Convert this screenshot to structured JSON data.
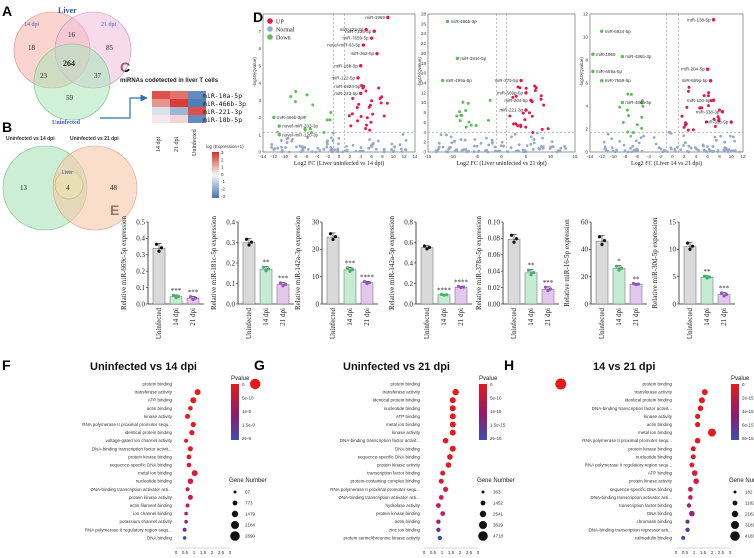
{
  "panel_labels": [
    "A",
    "B",
    "C",
    "D",
    "E",
    "F",
    "G",
    "H"
  ],
  "venn_a": {
    "sets": [
      "Liver",
      "14 dpi",
      "21 dpi",
      "Uninfected"
    ],
    "regions": [
      "18",
      "16",
      "85",
      "264",
      "23",
      "37",
      "59"
    ]
  },
  "venn_b": {
    "sets": [
      "Uninfected vs 14 dpi",
      "Uninfected vs 21 dpi",
      "Liver"
    ],
    "regions": [
      "13",
      "4",
      "48"
    ]
  },
  "heatmap": {
    "title": "miRNAs codetected in liver T cells",
    "rows": [
      "miR-10a-5p",
      "miR-466b-3p",
      "miR-221-3p",
      "miR-18b-5p"
    ],
    "cols": [
      "14 dpi",
      "21 dpi",
      "Uninfected"
    ],
    "legend_title": "log (Expression+1)",
    "legend_ticks": [
      "3",
      "2",
      "1",
      "0",
      "-1",
      "-2",
      "-3"
    ],
    "colors": {
      "high": "#d73027",
      "mid": "#f7f7f7",
      "low": "#4575b4"
    }
  },
  "volcano_legend": [
    "UP",
    "Normal",
    "Down"
  ],
  "volcano_colors": {
    "up": "#e8174b",
    "normal": "#97a9c9",
    "down": "#5cbf55"
  },
  "volcanoes": [
    {
      "xlabel": "Log2 FC (Liver uninfected vs 14 dpi)",
      "ylabel": "-log10(Qvalue)",
      "xticks": [
        "-14",
        "-12",
        "-10",
        "-8",
        "-6",
        "-4",
        "-2",
        "0",
        "2",
        "4",
        "6",
        "8",
        "10",
        "12",
        "14"
      ],
      "yticks": [
        "0",
        "1",
        "2",
        "3",
        "4",
        "5",
        "6",
        "7",
        "8"
      ],
      "labels": [
        "miR-1969",
        "miR-223-3p",
        "miR-7225-5p",
        "miR-7659-5p",
        "novel-miR-63-5p",
        "miR-362-5p",
        "miR-18b-5p",
        "miR-122-5p",
        "miR-6924-5p",
        "miR-223-5p",
        "miR-466b-3p",
        "novel-miR-333-3p",
        "novel-miR-120-3p"
      ]
    },
    {
      "xlabel": "Log2 FC (Liver uninfected vs 21 dpi)",
      "ylabel": "-log10(Qvalue)",
      "xticks": [
        "-15",
        "-10",
        "-5",
        "0",
        "5",
        "10",
        "15"
      ],
      "yticks": [
        "0",
        "2",
        "4",
        "6",
        "8",
        "10",
        "12",
        "14",
        "16",
        "18",
        "20",
        "22",
        "24",
        "26",
        "28"
      ],
      "labels": [
        "miR-486b-3p",
        "miR-181c-5p",
        "miR-499a-5p",
        "miR-375-5p",
        "miR-669p-5p",
        "miR-204-5p",
        "miR-221-3p"
      ]
    },
    {
      "xlabel": "Log2 FC (Liver 14 vs 21 dpi)",
      "ylabel": "-log10(Qvalue)",
      "xticks": [
        "-14",
        "-12",
        "-10",
        "-8",
        "-6",
        "-4",
        "-2",
        "0",
        "2",
        "4",
        "6",
        "8",
        "10",
        "12"
      ],
      "yticks": [
        "0",
        "2",
        "4",
        "6",
        "8",
        "10",
        "12"
      ],
      "labels": [
        "miR-138-5p",
        "miR-6924-5p",
        "miR-1969",
        "miR-486b-3p",
        "miR-669a-5p",
        "miR-7659-5p",
        "miR-204-5p",
        "miR-669p-5p",
        "miR-486a-5p",
        "miR-100-5p",
        "miR-338-3p",
        "miR-338-5p"
      ]
    }
  ],
  "bar_categories": [
    "Uninfected",
    "14 dpi",
    "21 dpi"
  ],
  "bar_colors": [
    "#d9d9d9",
    "#c5ecd3",
    "#e3c7ee"
  ],
  "bar_charts": [
    {
      "ylabel": "Relative miR-669c-5p expression",
      "ylim": [
        0,
        0.5
      ],
      "yticks": [
        "0.0",
        "0.1",
        "0.2",
        "0.3",
        "0.4",
        "0.5"
      ],
      "values": [
        0.34,
        0.045,
        0.035
      ],
      "errors": [
        0.03,
        0.01,
        0.012
      ],
      "stars": [
        "",
        "***",
        "***"
      ]
    },
    {
      "ylabel": "Relative miR-181c-5p expression",
      "ylim": [
        0,
        0.4
      ],
      "yticks": [
        "0.0",
        "0.1",
        "0.2",
        "0.3",
        "0.4"
      ],
      "values": [
        0.3,
        0.17,
        0.095
      ],
      "errors": [
        0.02,
        0.012,
        0.01
      ],
      "stars": [
        "",
        "**",
        "***"
      ]
    },
    {
      "ylabel": "Relative miR-142a-3p expression",
      "ylim": [
        0,
        30
      ],
      "yticks": [
        "0",
        "10",
        "20",
        "30"
      ],
      "values": [
        24.5,
        12.5,
        7.8
      ],
      "errors": [
        1.5,
        0.9,
        0.5
      ],
      "stars": [
        "",
        "***",
        "****"
      ]
    },
    {
      "ylabel": "Relative miR-142a-5p expression",
      "ylim": [
        0,
        0.8
      ],
      "yticks": [
        "0.0",
        "0.2",
        "0.4",
        "0.6",
        "0.8"
      ],
      "values": [
        0.55,
        0.09,
        0.165
      ],
      "errors": [
        0.02,
        0.005,
        0.008
      ],
      "stars": [
        "",
        "****",
        "****"
      ]
    },
    {
      "ylabel": "Relative miR-378a-5p expression",
      "ylim": [
        0,
        0.1
      ],
      "yticks": [
        "0.00",
        "0.02",
        "0.04",
        "0.06",
        "0.08",
        "0.10"
      ],
      "values": [
        0.079,
        0.038,
        0.018
      ],
      "errors": [
        0.006,
        0.004,
        0.003
      ],
      "stars": [
        "",
        "**",
        "***"
      ]
    },
    {
      "ylabel": "Relative miR-16-5p expression",
      "ylim": [
        0,
        60
      ],
      "yticks": [
        "0",
        "20",
        "40",
        "60"
      ],
      "values": [
        46,
        26,
        14.5
      ],
      "errors": [
        4,
        2,
        0.6
      ],
      "stars": [
        "",
        "*",
        "**"
      ]
    },
    {
      "ylabel": "Relative miR-30d-5p expression",
      "ylim": [
        0,
        15
      ],
      "yticks": [
        "0",
        "5",
        "10",
        "15"
      ],
      "values": [
        10.5,
        4.9,
        1.7
      ],
      "errors": [
        0.8,
        0.25,
        0.4
      ],
      "stars": [
        "",
        "**",
        "***"
      ]
    }
  ],
  "dot_plots": [
    {
      "title": "Uninfected vs 14 dpi",
      "terms": [
        "protein binding",
        "transferase activity",
        "ATP binding",
        "actin binding",
        "kinase activity",
        "RNA polymerase II proximal promoter sequ...",
        "identical protein binding",
        "voltage-gated ion channel activity",
        "DNA-binding transcription factor activit...",
        "protein kinase binding",
        "sequence-specific DNA binding",
        "metal ion binding",
        "nucleotide binding",
        "DNA-binding transcription activator acti...",
        "protein kinase activity",
        "actin filament binding",
        "ion channel binding",
        "potassium channel activity",
        "RNA polymerase II regulatory region sequ...",
        "DNA binding"
      ],
      "pvalue_title": "Pvalue",
      "pvalue_ticks": [
        "0",
        "5e-10",
        "1e-9",
        "1.5e-9",
        "2e-9"
      ],
      "gene_title": "Gene Number",
      "gene_sizes": [
        "67",
        "773",
        "1479",
        "2184",
        "2890"
      ],
      "xticks": [
        "0",
        "0.5",
        "1",
        "1.5",
        "2",
        "2.5",
        "3"
      ]
    },
    {
      "title": "Uninfected vs 21 dpi",
      "terms": [
        "protein binding",
        "transferase activity",
        "identical protein binding",
        "nucleotide binding",
        "ATP binding",
        "metal ion binding",
        "kinase activity",
        "DNA-binding transcription factor activit...",
        "DNA binding",
        "sequence-specific DNA binding",
        "protein kinase activity",
        "transcription factor binding",
        "protein-containing complex binding",
        "RNA polymerase II proximal promoter sequ...",
        "DNA-binding transcription activator acti...",
        "hydrolase activity",
        "protein kinase binding",
        "actin binding",
        "zinc ion binding",
        "protein serine/threonine kinase activity"
      ],
      "pvalue_title": "Pvalue",
      "pvalue_ticks": [
        "0",
        "5e-16",
        "1e-15",
        "1.5e-15",
        "2e-15"
      ],
      "gene_title": "Gene Number",
      "gene_sizes": [
        "363",
        "1452",
        "2541",
        "3629",
        "4718"
      ],
      "xticks": [
        "0",
        "0.5",
        "1",
        "1.5",
        "2",
        "2.5",
        "3"
      ]
    },
    {
      "title": "14 vs 21 dpi",
      "terms": [
        "protein binding",
        "transferase activity",
        "identical protein binding",
        "DNA-binding transcription factor activit...",
        "kinase activity",
        "actin binding",
        "metal ion binding",
        "RNA polymerase II proximal promoter sequ...",
        "protein kinase binding",
        "nucleotide binding",
        "RNA polymerase II regulatory region sequ...",
        "ATP binding",
        "protein kinase activity",
        "sequence-specific DNA binding",
        "DNA-binding transcription activator acti...",
        "transcription factor binding",
        "DNA binding",
        "chromatin binding",
        "DNA-binding transcription repressor acti...",
        "calmodulin binding"
      ],
      "pvalue_title": "Pvalue",
      "pvalue_ticks": [
        "0",
        "2e-15",
        "4e-15",
        "6e-15",
        "8e-15"
      ],
      "gene_title": "Gene Number",
      "gene_sizes": [
        "182",
        "1182",
        "2182",
        "3181",
        "4181"
      ],
      "xticks": [
        "0",
        "0.5",
        "1",
        "1.5",
        "2",
        "2.5",
        "3"
      ]
    }
  ]
}
